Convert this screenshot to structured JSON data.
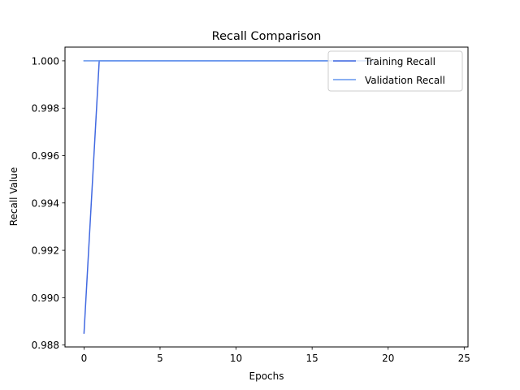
{
  "chart_data": {
    "type": "line",
    "title": "Recall Comparison",
    "xlabel": "Epochs",
    "ylabel": "Recall Value",
    "xlim": [
      -1.25,
      25.25
    ],
    "ylim": [
      0.98792,
      1.00058
    ],
    "xticks": [
      0,
      5,
      10,
      15,
      20,
      25
    ],
    "xtick_labels": [
      "0",
      "5",
      "10",
      "15",
      "20",
      "25"
    ],
    "yticks": [
      0.988,
      0.99,
      0.992,
      0.994,
      0.996,
      0.998,
      1.0
    ],
    "ytick_labels": [
      "0.988",
      "0.990",
      "0.992",
      "0.994",
      "0.996",
      "0.998",
      "1.000"
    ],
    "grid": false,
    "legend_position": "upper-right",
    "series": [
      {
        "name": "Training Recall",
        "color": "#4169E1",
        "x": [
          0,
          1,
          2,
          3,
          4,
          5,
          6,
          7,
          8,
          9,
          10,
          11,
          12,
          13,
          14,
          15,
          16,
          17,
          18,
          19
        ],
        "values": [
          0.9885,
          1.0,
          1.0,
          1.0,
          1.0,
          1.0,
          1.0,
          1.0,
          1.0,
          1.0,
          1.0,
          1.0,
          1.0,
          1.0,
          1.0,
          1.0,
          1.0,
          1.0,
          1.0,
          1.0
        ]
      },
      {
        "name": "Validation Recall",
        "color": "#6495ED",
        "x": [
          0,
          1,
          2,
          3,
          4,
          5,
          6,
          7,
          8,
          9,
          10,
          11,
          12,
          13,
          14,
          15,
          16,
          17,
          18,
          19
        ],
        "values": [
          1.0,
          1.0,
          1.0,
          1.0,
          1.0,
          1.0,
          1.0,
          1.0,
          1.0,
          1.0,
          1.0,
          1.0,
          1.0,
          1.0,
          1.0,
          1.0,
          1.0,
          1.0,
          1.0,
          1.0
        ]
      }
    ]
  }
}
